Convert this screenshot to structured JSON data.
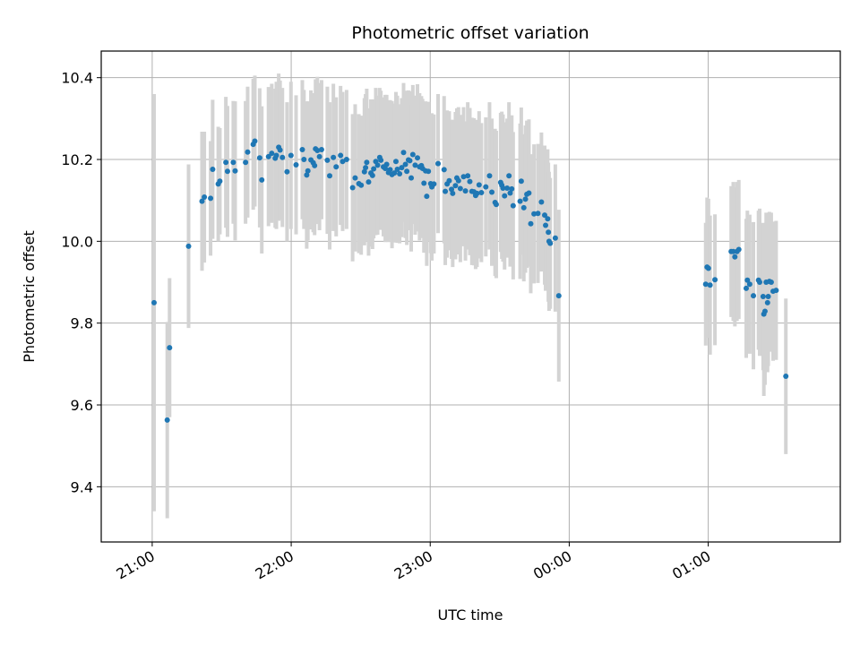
{
  "chart_data": {
    "type": "scatter",
    "title": "Photometric offset variation",
    "xlabel": "UTC time",
    "ylabel": "Photometric offset",
    "x_unit": "minutes relative to 21:00 UTC",
    "xlim": [
      -22,
      297
    ],
    "ylim": [
      9.265,
      10.465
    ],
    "xticks": [
      {
        "x": 0,
        "label": "21:00"
      },
      {
        "x": 60,
        "label": "22:00"
      },
      {
        "x": 120,
        "label": "23:00"
      },
      {
        "x": 180,
        "label": "00:00"
      },
      {
        "x": 240,
        "label": "01:00"
      }
    ],
    "yticks": [
      9.4,
      9.6,
      9.8,
      10.0,
      10.2,
      10.4
    ],
    "grid": true,
    "colors": {
      "point": "#1f77b4",
      "errorbar": "#d3d3d3",
      "grid": "#b0b0b0"
    },
    "points": [
      [
        0.8,
        9.85,
        0.51
      ],
      [
        6.5,
        9.563,
        0.24
      ],
      [
        7.5,
        9.74,
        0.17
      ],
      [
        15.7,
        9.988,
        0.2
      ],
      [
        21.5,
        10.098,
        0.17
      ],
      [
        22.5,
        10.108,
        0.16
      ],
      [
        25.2,
        10.105,
        0.14
      ],
      [
        26.1,
        10.176,
        0.17
      ],
      [
        28.5,
        10.14,
        0.14
      ],
      [
        29.2,
        10.147,
        0.13
      ],
      [
        31.8,
        10.193,
        0.16
      ],
      [
        32.5,
        10.171,
        0.16
      ],
      [
        35.0,
        10.193,
        0.15
      ],
      [
        35.8,
        10.172,
        0.17
      ],
      [
        40.3,
        10.193,
        0.15
      ],
      [
        41.2,
        10.218,
        0.16
      ],
      [
        43.6,
        10.237,
        0.16
      ],
      [
        44.3,
        10.245,
        0.16
      ],
      [
        46.4,
        10.204,
        0.17
      ],
      [
        47.3,
        10.15,
        0.18
      ],
      [
        50.2,
        10.207,
        0.17
      ],
      [
        51.6,
        10.215,
        0.17
      ],
      [
        53.1,
        10.203,
        0.17
      ],
      [
        53.6,
        10.21,
        0.18
      ],
      [
        54.6,
        10.23,
        0.18
      ],
      [
        55.2,
        10.223,
        0.17
      ],
      [
        56.2,
        10.205,
        0.17
      ],
      [
        58.2,
        10.17,
        0.17
      ],
      [
        59.9,
        10.21,
        0.18
      ],
      [
        62.1,
        10.187,
        0.17
      ],
      [
        64.8,
        10.224,
        0.17
      ],
      [
        65.5,
        10.2,
        0.17
      ],
      [
        66.7,
        10.162,
        0.18
      ],
      [
        67.2,
        10.172,
        0.17
      ],
      [
        68.5,
        10.199,
        0.17
      ],
      [
        69.5,
        10.192,
        0.17
      ],
      [
        70.1,
        10.185,
        0.17
      ],
      [
        70.5,
        10.226,
        0.17
      ],
      [
        71.3,
        10.222,
        0.18
      ],
      [
        72.2,
        10.207,
        0.18
      ],
      [
        73.1,
        10.224,
        0.17
      ],
      [
        75.6,
        10.198,
        0.18
      ],
      [
        76.6,
        10.16,
        0.18
      ],
      [
        78.2,
        10.205,
        0.18
      ],
      [
        79.4,
        10.182,
        0.17
      ],
      [
        81.3,
        10.21,
        0.17
      ],
      [
        82.2,
        10.195,
        0.17
      ],
      [
        83.9,
        10.2,
        0.17
      ],
      [
        86.5,
        10.131,
        0.18
      ],
      [
        87.6,
        10.155,
        0.18
      ],
      [
        89.2,
        10.141,
        0.17
      ],
      [
        90.2,
        10.137,
        0.17
      ],
      [
        91.6,
        10.17,
        0.18
      ],
      [
        92.1,
        10.18,
        0.18
      ],
      [
        92.6,
        10.193,
        0.18
      ],
      [
        93.4,
        10.145,
        0.18
      ],
      [
        94.4,
        10.167,
        0.18
      ],
      [
        95.1,
        10.161,
        0.18
      ],
      [
        95.6,
        10.177,
        0.17
      ],
      [
        96.5,
        10.195,
        0.18
      ],
      [
        97.3,
        10.186,
        0.17
      ],
      [
        98.2,
        10.205,
        0.17
      ],
      [
        98.7,
        10.198,
        0.17
      ],
      [
        99.8,
        10.182,
        0.17
      ],
      [
        100.6,
        10.178,
        0.18
      ],
      [
        101.2,
        10.188,
        0.17
      ],
      [
        102.0,
        10.168,
        0.17
      ],
      [
        102.7,
        10.175,
        0.17
      ],
      [
        103.5,
        10.163,
        0.18
      ],
      [
        104.5,
        10.167,
        0.17
      ],
      [
        105.2,
        10.195,
        0.17
      ],
      [
        105.8,
        10.176,
        0.18
      ],
      [
        106.8,
        10.165,
        0.17
      ],
      [
        107.7,
        10.18,
        0.17
      ],
      [
        108.5,
        10.217,
        0.17
      ],
      [
        109.3,
        10.188,
        0.18
      ],
      [
        109.9,
        10.171,
        0.18
      ],
      [
        110.6,
        10.199,
        0.17
      ],
      [
        111.2,
        10.197,
        0.17
      ],
      [
        111.8,
        10.155,
        0.18
      ],
      [
        112.5,
        10.212,
        0.17
      ],
      [
        113.5,
        10.186,
        0.17
      ],
      [
        114.5,
        10.204,
        0.18
      ],
      [
        115.4,
        10.182,
        0.18
      ],
      [
        116.2,
        10.185,
        0.17
      ],
      [
        116.7,
        10.178,
        0.17
      ],
      [
        117.3,
        10.142,
        0.17
      ],
      [
        118.0,
        10.172,
        0.17
      ],
      [
        118.5,
        10.11,
        0.17
      ],
      [
        119.2,
        10.171,
        0.17
      ],
      [
        120.2,
        10.141,
        0.17
      ],
      [
        120.7,
        10.133,
        0.18
      ],
      [
        121.6,
        10.14,
        0.17
      ],
      [
        123.4,
        10.19,
        0.17
      ],
      [
        126.0,
        10.175,
        0.18
      ],
      [
        126.5,
        10.122,
        0.18
      ],
      [
        127.3,
        10.14,
        0.18
      ],
      [
        128.2,
        10.148,
        0.17
      ],
      [
        129.2,
        10.127,
        0.17
      ],
      [
        129.7,
        10.117,
        0.18
      ],
      [
        130.9,
        10.136,
        0.18
      ],
      [
        131.5,
        10.155,
        0.17
      ],
      [
        132.2,
        10.148,
        0.18
      ],
      [
        133.0,
        10.129,
        0.18
      ],
      [
        134.4,
        10.158,
        0.17
      ],
      [
        135.2,
        10.123,
        0.17
      ],
      [
        136.2,
        10.16,
        0.18
      ],
      [
        137.1,
        10.146,
        0.18
      ],
      [
        138.0,
        10.122,
        0.18
      ],
      [
        138.9,
        10.121,
        0.18
      ],
      [
        139.6,
        10.112,
        0.18
      ],
      [
        140.2,
        10.117,
        0.18
      ],
      [
        141.1,
        10.138,
        0.18
      ],
      [
        142.1,
        10.119,
        0.17
      ],
      [
        144.0,
        10.133,
        0.17
      ],
      [
        145.6,
        10.16,
        0.18
      ],
      [
        146.6,
        10.12,
        0.18
      ],
      [
        148.0,
        10.095,
        0.18
      ],
      [
        148.5,
        10.09,
        0.18
      ],
      [
        150.4,
        10.144,
        0.17
      ],
      [
        150.9,
        10.137,
        0.18
      ],
      [
        151.4,
        10.13,
        0.18
      ],
      [
        152.1,
        10.111,
        0.18
      ],
      [
        153.2,
        10.13,
        0.17
      ],
      [
        154.0,
        10.16,
        0.18
      ],
      [
        154.5,
        10.118,
        0.18
      ],
      [
        155.2,
        10.128,
        0.18
      ],
      [
        155.8,
        10.087,
        0.18
      ],
      [
        158.8,
        10.098,
        0.19
      ],
      [
        159.3,
        10.147,
        0.18
      ],
      [
        160.4,
        10.082,
        0.18
      ],
      [
        161.1,
        10.103,
        0.18
      ],
      [
        161.7,
        10.115,
        0.18
      ],
      [
        162.6,
        10.118,
        0.18
      ],
      [
        163.4,
        10.043,
        0.17
      ],
      [
        164.8,
        10.067,
        0.17
      ],
      [
        166.5,
        10.068,
        0.17
      ],
      [
        168.0,
        10.096,
        0.17
      ],
      [
        169.4,
        10.064,
        0.17
      ],
      [
        169.8,
        10.039,
        0.16
      ],
      [
        170.7,
        10.055,
        0.17
      ],
      [
        171.0,
        10.022,
        0.17
      ],
      [
        171.3,
        10.0,
        0.17
      ],
      [
        171.8,
        9.995,
        0.16
      ],
      [
        174.0,
        10.008,
        0.18
      ],
      [
        175.5,
        9.867,
        0.21
      ],
      [
        238.9,
        9.895,
        0.15
      ],
      [
        239.5,
        9.937,
        0.17
      ],
      [
        240.1,
        9.934,
        0.17
      ],
      [
        240.8,
        9.893,
        0.17
      ],
      [
        242.9,
        9.906,
        0.16
      ],
      [
        249.9,
        9.975,
        0.16
      ],
      [
        250.8,
        9.975,
        0.17
      ],
      [
        251.5,
        9.962,
        0.17
      ],
      [
        252.4,
        9.975,
        0.17
      ],
      [
        253.2,
        9.98,
        0.17
      ],
      [
        256.4,
        9.885,
        0.17
      ],
      [
        256.9,
        9.905,
        0.17
      ],
      [
        257.9,
        9.895,
        0.17
      ],
      [
        259.5,
        9.867,
        0.18
      ],
      [
        261.7,
        9.905,
        0.17
      ],
      [
        262.2,
        9.9,
        0.18
      ],
      [
        263.7,
        9.865,
        0.18
      ],
      [
        264.0,
        9.822,
        0.2
      ],
      [
        264.5,
        9.829,
        0.18
      ],
      [
        265.0,
        9.9,
        0.17
      ],
      [
        265.6,
        9.85,
        0.17
      ],
      [
        265.9,
        9.865,
        0.17
      ],
      [
        266.4,
        9.902,
        0.17
      ],
      [
        267.2,
        9.9,
        0.17
      ],
      [
        268.0,
        9.878,
        0.17
      ],
      [
        269.3,
        9.88,
        0.17
      ],
      [
        273.5,
        9.67,
        0.19
      ]
    ]
  }
}
